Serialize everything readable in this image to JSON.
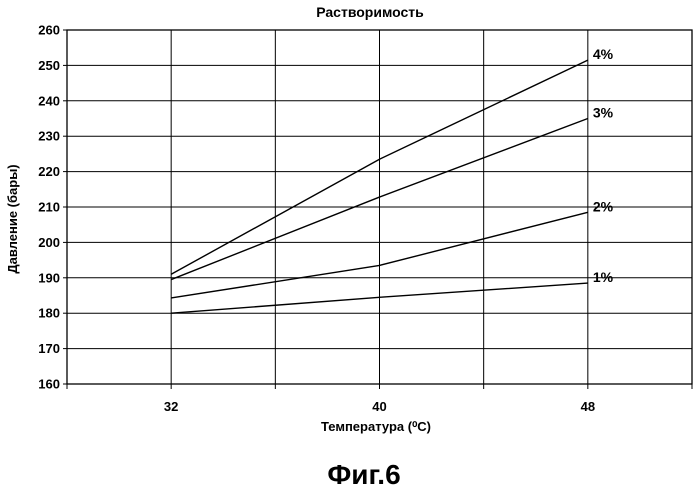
{
  "chart_data": {
    "type": "line",
    "title": "Растворимость",
    "xlabel": "Температура (⁰C)",
    "ylabel": "Давление (бары)",
    "x": [
      32,
      40,
      48
    ],
    "xlim": [
      28,
      52
    ],
    "x_ticks": [
      "32",
      "40",
      "48"
    ],
    "ylim": [
      160,
      260
    ],
    "y_ticks": [
      "160",
      "170",
      "180",
      "190",
      "200",
      "210",
      "220",
      "230",
      "240",
      "250",
      "260"
    ],
    "grid": true,
    "series": [
      {
        "name": "1%",
        "values": [
          180,
          184.5,
          188.5
        ]
      },
      {
        "name": "2%",
        "values": [
          184.3,
          193.5,
          208.5
        ]
      },
      {
        "name": "3%",
        "values": [
          189.5,
          212.8,
          235
        ]
      },
      {
        "name": "4%",
        "values": [
          191,
          223.5,
          251.5
        ]
      }
    ]
  },
  "caption": "Фиг.6"
}
